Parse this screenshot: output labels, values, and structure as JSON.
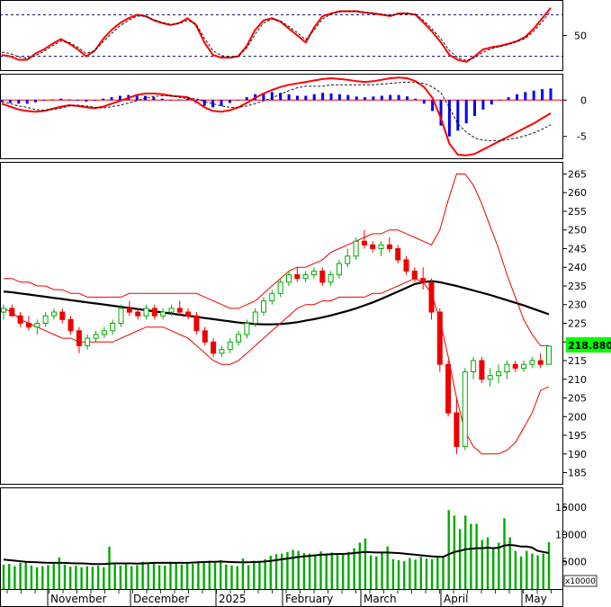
{
  "chart_data": [
    {
      "panel": "stochastic",
      "type": "line",
      "y_ticks": [
        50
      ],
      "ylim": [
        0,
        100
      ],
      "levels": [
        80,
        20
      ],
      "series": [
        {
          "color": "#ff0000",
          "values": [
            22,
            20,
            15,
            15,
            24,
            30,
            38,
            45,
            38,
            30,
            20,
            28,
            45,
            58,
            68,
            75,
            80,
            78,
            72,
            68,
            65,
            68,
            75,
            65,
            40,
            22,
            18,
            18,
            20,
            35,
            58,
            72,
            75,
            70,
            60,
            50,
            40,
            62,
            78,
            82,
            85,
            85,
            85,
            83,
            82,
            80,
            78,
            82,
            82,
            80,
            68,
            55,
            40,
            22,
            15,
            12,
            20,
            30,
            33,
            35,
            38,
            42,
            48,
            60,
            75,
            90
          ]
        },
        {
          "color": "#000000",
          "dashed": true,
          "values": [
            26,
            24,
            19,
            17,
            21,
            27,
            35,
            42,
            40,
            33,
            24,
            28,
            41,
            53,
            64,
            72,
            78,
            78,
            73,
            69,
            66,
            67,
            72,
            67,
            46,
            28,
            21,
            19,
            20,
            32,
            52,
            68,
            74,
            71,
            63,
            54,
            44,
            58,
            74,
            81,
            84,
            85,
            85,
            84,
            82,
            81,
            79,
            81,
            82,
            81,
            71,
            59,
            45,
            28,
            18,
            14,
            18,
            26,
            31,
            34,
            37,
            41,
            46,
            56,
            70,
            85
          ]
        }
      ]
    },
    {
      "panel": "macd",
      "type": "bar",
      "y_ticks": [
        0,
        -5
      ],
      "ylim": [
        -8,
        3.5
      ],
      "histogram_colors": {
        "positive": "#0000ff",
        "negative": "#0000ff"
      },
      "histogram": [
        -0.3,
        -0.4,
        -0.5,
        -0.5,
        -0.3,
        -0.1,
        0.1,
        0.2,
        0.1,
        -0.1,
        -0.2,
        -0.1,
        0.2,
        0.4,
        0.6,
        0.7,
        0.8,
        0.6,
        0.4,
        0.2,
        0.0,
        0.1,
        0.2,
        -0.4,
        -0.8,
        -1.0,
        -0.8,
        -0.4,
        0.0,
        0.4,
        0.8,
        1.0,
        1.1,
        1.0,
        0.8,
        0.6,
        0.6,
        0.8,
        1.0,
        0.9,
        0.8,
        0.7,
        0.5,
        0.4,
        0.5,
        0.6,
        0.7,
        0.7,
        0.5,
        0.2,
        -0.5,
        -1.5,
        -3.5,
        -5.0,
        -4.2,
        -3.2,
        -2.2,
        -1.3,
        -0.6,
        0.0,
        0.4,
        0.8,
        1.1,
        1.3,
        1.5,
        1.6
      ],
      "series": [
        {
          "color": "#ff0000",
          "values": [
            -0.5,
            -0.9,
            -1.3,
            -1.5,
            -1.6,
            -1.5,
            -1.2,
            -0.9,
            -0.7,
            -0.8,
            -1.0,
            -1.1,
            -0.9,
            -0.5,
            -0.1,
            0.3,
            0.7,
            0.9,
            0.9,
            0.8,
            0.6,
            0.5,
            0.4,
            -0.2,
            -1.0,
            -1.5,
            -1.6,
            -1.4,
            -1.0,
            -0.4,
            0.3,
            0.9,
            1.4,
            1.8,
            2.1,
            2.3,
            2.5,
            2.7,
            2.9,
            3.0,
            2.9,
            2.8,
            2.6,
            2.5,
            2.6,
            2.8,
            3.0,
            3.1,
            3.0,
            2.6,
            1.8,
            0.3,
            -2.5,
            -6.0,
            -7.5,
            -7.6,
            -7.4,
            -6.8,
            -6.2,
            -5.6,
            -5.0,
            -4.4,
            -3.8,
            -3.2,
            -2.5,
            -1.8
          ]
        },
        {
          "color": "#000000",
          "dashed": true,
          "values": [
            -0.2,
            -0.5,
            -0.8,
            -1.0,
            -1.3,
            -1.4,
            -1.3,
            -1.1,
            -0.8,
            -0.7,
            -0.8,
            -1.0,
            -1.1,
            -0.9,
            -0.7,
            -0.4,
            -0.1,
            0.3,
            0.5,
            0.6,
            0.6,
            0.4,
            0.2,
            0.2,
            -0.2,
            -0.5,
            -0.8,
            -1.0,
            -1.0,
            -0.8,
            -0.5,
            -0.1,
            0.3,
            0.8,
            1.3,
            1.7,
            1.9,
            1.9,
            1.9,
            2.1,
            2.1,
            2.1,
            2.1,
            2.1,
            2.1,
            2.2,
            2.3,
            2.4,
            2.5,
            2.4,
            2.3,
            1.8,
            1.0,
            -1.0,
            -3.3,
            -4.4,
            -5.2,
            -5.5,
            -5.6,
            -5.6,
            -5.4,
            -5.2,
            -4.9,
            -4.5,
            -4.0,
            -3.4
          ]
        }
      ]
    },
    {
      "panel": "price",
      "type": "candlestick",
      "y_ticks": [
        185,
        190,
        195,
        200,
        205,
        210,
        215,
        220,
        225,
        230,
        235,
        240,
        245,
        250,
        255,
        260,
        265
      ],
      "ylim": [
        182,
        268
      ],
      "last_value_label": "218.8800",
      "colors": {
        "up": "#00aa00",
        "down": "#ee0000",
        "ma": "#000000",
        "bands": "#ee0000"
      },
      "ohlc": [
        [
          228,
          230,
          226,
          229
        ],
        [
          229,
          230,
          227,
          227
        ],
        [
          227,
          228,
          224,
          225
        ],
        [
          225,
          227,
          223,
          224
        ],
        [
          224,
          226,
          222,
          225
        ],
        [
          225,
          228,
          224,
          227
        ],
        [
          227,
          229,
          226,
          228
        ],
        [
          228,
          229,
          225,
          226
        ],
        [
          226,
          227,
          222,
          223
        ],
        [
          223,
          224,
          217,
          219
        ],
        [
          219,
          222,
          218,
          221
        ],
        [
          221,
          223,
          220,
          222
        ],
        [
          222,
          224,
          221,
          223
        ],
        [
          223,
          226,
          222,
          225
        ],
        [
          225,
          230,
          224,
          229
        ],
        [
          229,
          231,
          227,
          228
        ],
        [
          228,
          229,
          226,
          227
        ],
        [
          227,
          230,
          226,
          229
        ],
        [
          229,
          230,
          226,
          227
        ],
        [
          227,
          229,
          226,
          228
        ],
        [
          228,
          230,
          227,
          229
        ],
        [
          229,
          231,
          227,
          228
        ],
        [
          228,
          229,
          226,
          227
        ],
        [
          227,
          228,
          222,
          223
        ],
        [
          223,
          224,
          219,
          220
        ],
        [
          220,
          221,
          216,
          217
        ],
        [
          217,
          219,
          216,
          218
        ],
        [
          218,
          221,
          217,
          220
        ],
        [
          220,
          223,
          219,
          222
        ],
        [
          222,
          226,
          221,
          225
        ],
        [
          225,
          229,
          224,
          228
        ],
        [
          228,
          232,
          227,
          231
        ],
        [
          231,
          234,
          230,
          233
        ],
        [
          233,
          237,
          232,
          236
        ],
        [
          236,
          239,
          235,
          238
        ],
        [
          238,
          240,
          236,
          237
        ],
        [
          237,
          239,
          236,
          238
        ],
        [
          238,
          240,
          237,
          239
        ],
        [
          239,
          240,
          235,
          236
        ],
        [
          236,
          239,
          235,
          238
        ],
        [
          238,
          242,
          237,
          241
        ],
        [
          241,
          245,
          240,
          243
        ],
        [
          243,
          248,
          242,
          247
        ],
        [
          247,
          250,
          245,
          246
        ],
        [
          246,
          247,
          244,
          245
        ],
        [
          245,
          247,
          243,
          246
        ],
        [
          246,
          248,
          244,
          245
        ],
        [
          245,
          246,
          241,
          242
        ],
        [
          242,
          243,
          238,
          239
        ],
        [
          239,
          240,
          236,
          237
        ],
        [
          237,
          240,
          234,
          236
        ],
        [
          236,
          237,
          226,
          228
        ],
        [
          228,
          229,
          212,
          214
        ],
        [
          214,
          215,
          200,
          201
        ],
        [
          201,
          205,
          190,
          192
        ],
        [
          192,
          213,
          191,
          212
        ],
        [
          212,
          216,
          210,
          215
        ],
        [
          215,
          216,
          209,
          210
        ],
        [
          210,
          213,
          208,
          211
        ],
        [
          211,
          214,
          209,
          212
        ],
        [
          212,
          215,
          210,
          214
        ],
        [
          214,
          215,
          212,
          213
        ],
        [
          213,
          215,
          212,
          214
        ],
        [
          214,
          216,
          213,
          215
        ],
        [
          215,
          217,
          213,
          214
        ],
        [
          214,
          219,
          214,
          218.88
        ]
      ],
      "series": [
        {
          "name": "",
          "role": "ma",
          "values": [
            233.5,
            233.3,
            233.0,
            232.7,
            232.4,
            232.1,
            231.8,
            231.5,
            231.2,
            230.9,
            230.6,
            230.3,
            230.0,
            229.7,
            229.4,
            229.1,
            228.8,
            228.5,
            228.2,
            227.9,
            227.6,
            227.3,
            227.0,
            226.7,
            226.4,
            226.1,
            225.8,
            225.5,
            225.2,
            225.0,
            224.8,
            224.7,
            224.7,
            224.8,
            225.0,
            225.3,
            225.7,
            226.1,
            226.6,
            227.1,
            227.7,
            228.3,
            229.0,
            229.8,
            230.6,
            231.5,
            232.5,
            233.5,
            234.5,
            235.5,
            236.0,
            236.3,
            236.0,
            235.5,
            235.0,
            234.4,
            233.8,
            233.2,
            232.6,
            231.9,
            231.2,
            230.5,
            229.8,
            229.0,
            228.2,
            227.4
          ]
        },
        {
          "name": "",
          "role": "upper_band",
          "values": [
            237,
            237,
            236,
            236,
            235,
            235,
            234,
            234,
            233,
            233,
            232,
            232,
            232,
            232,
            232,
            233,
            233,
            233,
            233,
            233,
            233,
            233,
            233,
            233,
            232,
            231,
            230,
            229,
            229,
            230,
            231,
            233,
            235,
            237,
            239,
            240,
            240,
            241,
            242,
            244,
            245,
            246,
            247,
            248,
            249,
            249,
            250,
            250,
            249,
            248,
            247,
            246,
            250,
            258,
            265,
            265,
            262,
            257,
            251,
            245,
            238,
            232,
            226,
            222,
            219,
            219
          ]
        },
        {
          "name": "",
          "role": "lower_band",
          "values": [
            229,
            228,
            226,
            225,
            224,
            223,
            222,
            221,
            221,
            220,
            220,
            220,
            220,
            220,
            221,
            222,
            223,
            224,
            224,
            224,
            223,
            222,
            221,
            219,
            217,
            215,
            214,
            214,
            215,
            217,
            219,
            221,
            223,
            225,
            227,
            229,
            230,
            230,
            231,
            231,
            232,
            232,
            232,
            232,
            233,
            233,
            234,
            235,
            236,
            237,
            236,
            233,
            226,
            216,
            205,
            196,
            192,
            190,
            190,
            190,
            191,
            193,
            197,
            201,
            207,
            208
          ]
        }
      ]
    },
    {
      "panel": "volume",
      "type": "bar",
      "unit_label": "x10000",
      "y_ticks": [
        5000,
        10000,
        15000
      ],
      "ylim": [
        0,
        18500
      ],
      "colors": {
        "bars": "#00aa00",
        "ma": "#000000"
      },
      "values": [
        4500,
        4600,
        4200,
        4800,
        5000,
        4300,
        4000,
        4200,
        4400,
        4600,
        5800,
        4500,
        4100,
        4300,
        4000,
        4200,
        4100,
        4300,
        4000,
        7800,
        4500,
        4300,
        4600,
        4200,
        4400,
        5000,
        4600,
        4800,
        4400,
        4300,
        5000,
        4700,
        4500,
        4800,
        4600,
        5100,
        5000,
        5200,
        4800,
        5300,
        4500,
        4300,
        4200,
        5600,
        4400,
        5200,
        4900,
        5500,
        6100,
        6400,
        6500,
        6800,
        7200,
        7000,
        6600,
        6500,
        6100,
        6900,
        6300,
        6700,
        6600,
        6400,
        6800,
        7500,
        8500,
        9300,
        6200,
        6000,
        6800,
        7800,
        5500,
        5300,
        5100,
        5700,
        5400,
        5900,
        5600,
        5500,
        6000,
        6100,
        14500,
        13500,
        11000,
        13500,
        12000,
        12000,
        9000,
        9500,
        7500,
        8500,
        13000,
        9500,
        7000,
        6000,
        7000,
        6500,
        6200,
        6500,
        8600
      ],
      "series": [
        {
          "name": "",
          "role": "ma",
          "values": [
            5400,
            5300,
            5200,
            5100,
            5000,
            4950,
            4900,
            4850,
            4800,
            4800,
            4800,
            4800,
            4750,
            4700,
            4700,
            4650,
            4600,
            4600,
            4600,
            4650,
            4700,
            4700,
            4700,
            4700,
            4650,
            4700,
            4750,
            4800,
            4800,
            4800,
            4800,
            4800,
            4800,
            4800,
            4850,
            4900,
            4950,
            5000,
            5000,
            5050,
            5000,
            4950,
            4900,
            4900,
            4900,
            4950,
            5000,
            5050,
            5150,
            5300,
            5450,
            5600,
            5750,
            5900,
            6000,
            6100,
            6200,
            6300,
            6350,
            6400,
            6450,
            6450,
            6500,
            6600,
            6700,
            6800,
            6750,
            6700,
            6700,
            6700,
            6650,
            6600,
            6500,
            6400,
            6300,
            6200,
            6100,
            6000,
            5950,
            5900,
            6400,
            6800,
            7000,
            7300,
            7400,
            7500,
            7500,
            7600,
            7500,
            7600,
            8000,
            8100,
            8000,
            7800,
            7800,
            7600,
            7000,
            6800,
            6600
          ]
        }
      ]
    },
    {
      "panel": "time_axis",
      "type": "axis",
      "categories": [
        "November",
        "December",
        "2025",
        "February",
        "March",
        "April",
        "May"
      ]
    }
  ]
}
